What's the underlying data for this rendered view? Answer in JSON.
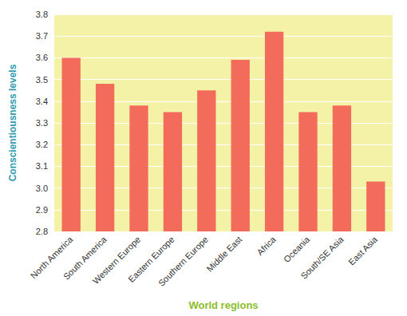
{
  "chart_data": {
    "type": "bar",
    "x_label": "World regions",
    "y_label": "Conscientiousness levels",
    "categories": [
      "North America",
      "South America",
      "Western Europe",
      "Eastern Europe",
      "Southern Europe",
      "Middle East",
      "Africa",
      "Oceania",
      "South/SE Asia",
      "East Asia"
    ],
    "values": [
      3.6,
      3.48,
      3.38,
      3.35,
      3.45,
      3.59,
      3.72,
      3.35,
      3.38,
      3.03
    ],
    "color": "#f26b5b",
    "ylim": [
      2.8,
      3.8
    ],
    "yticks": [
      2.8,
      2.9,
      {
        "value": 3,
        "label": "3.0"
      },
      3.1,
      3.2,
      3.3,
      3.4,
      3.5,
      3.6,
      3.7,
      3.8
    ],
    "grid": true
  }
}
